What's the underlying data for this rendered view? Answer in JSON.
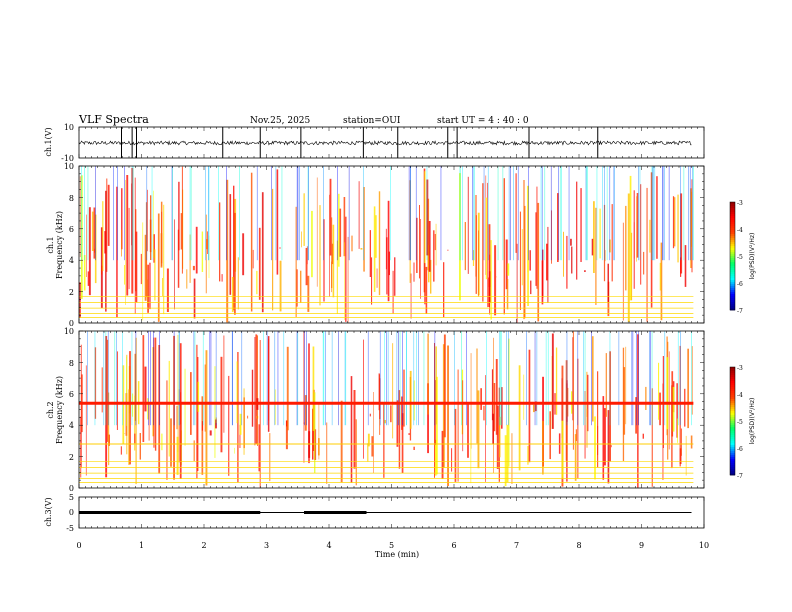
{
  "header": {
    "title": "VLF Spectra",
    "date": "Nov.25, 2025",
    "station": "station=OUI",
    "start_ut": "start  UT =  4 : 40 : 0"
  },
  "chart_data": [
    {
      "type": "line",
      "panel": "ch1-waveform",
      "ylabel": "ch.1(V)",
      "ylim": [
        -10,
        10
      ],
      "yticks": [
        "10",
        "-10"
      ],
      "xlim": [
        0,
        10
      ],
      "baseline": -0.3,
      "spikes": [
        0.68,
        0.85,
        0.92,
        2.3,
        2.9,
        3.55,
        4.55,
        5.1,
        5.9,
        6.05,
        7.2,
        8.3
      ]
    },
    {
      "type": "heatmap",
      "panel": "ch1-spectrogram",
      "ylabel": "ch.1\nFrequency (kHz)",
      "ylim": [
        0,
        10
      ],
      "yticks": [
        "0",
        "2",
        "4",
        "6",
        "8",
        "10"
      ],
      "xlim": [
        0,
        9.83
      ],
      "colorbar": {
        "range": [
          -7,
          -3
        ],
        "ticks": [
          "-3",
          "-4",
          "-5",
          "-6",
          "-7"
        ],
        "label": "log(PSD)(V²/Hz)"
      },
      "bands_khz": [
        {
          "f0": 0.0,
          "f1": 0.4,
          "level": -6.8
        },
        {
          "f0": 0.4,
          "f1": 2.0,
          "level": -6.4
        },
        {
          "f0": 2.0,
          "f1": 2.6,
          "level": -5.7
        },
        {
          "f0": 2.6,
          "f1": 3.3,
          "level": -5.2
        },
        {
          "f0": 3.3,
          "f1": 4.5,
          "level": -6.3
        },
        {
          "f0": 4.5,
          "f1": 5.0,
          "level": -5.6
        },
        {
          "f0": 5.0,
          "f1": 10.0,
          "level": -4.7
        }
      ]
    },
    {
      "type": "heatmap",
      "panel": "ch2-spectrogram",
      "ylabel": "ch.2\nFrequency (kHz)",
      "ylim": [
        0,
        10
      ],
      "yticks": [
        "0",
        "2",
        "4",
        "6",
        "8",
        "10"
      ],
      "xlim": [
        0,
        9.83
      ],
      "colorbar": {
        "range": [
          -7,
          -3
        ],
        "ticks": [
          "-3",
          "-4",
          "-5",
          "-6",
          "-7"
        ],
        "label": "log(PSD)(V²/Hz)"
      },
      "bands_khz": [
        {
          "f0": 0.0,
          "f1": 0.4,
          "level": -6.7
        },
        {
          "f0": 0.4,
          "f1": 2.0,
          "level": -6.3
        },
        {
          "f0": 2.0,
          "f1": 2.6,
          "level": -5.6
        },
        {
          "f0": 2.6,
          "f1": 3.0,
          "level": -4.7
        },
        {
          "f0": 3.0,
          "f1": 4.5,
          "level": -5.7
        },
        {
          "f0": 4.5,
          "f1": 5.1,
          "level": -5.0
        },
        {
          "f0": 5.1,
          "f1": 5.6,
          "level": -3.6
        },
        {
          "f0": 5.6,
          "f1": 10.0,
          "level": -4.4
        }
      ]
    },
    {
      "type": "line",
      "panel": "ch3-trigger",
      "ylabel": "ch.3(V)",
      "ylim": [
        -5,
        5
      ],
      "yticks": [
        "5",
        "0",
        "-5"
      ],
      "xlim": [
        0,
        10
      ],
      "level": 0,
      "thick_segments": [
        [
          0,
          2.9
        ],
        [
          3.6,
          4.6
        ]
      ],
      "xlabel": "Time (min)",
      "xticks": [
        "0",
        "1",
        "2",
        "3",
        "4",
        "5",
        "6",
        "7",
        "8",
        "9",
        "10"
      ]
    }
  ],
  "colors": {
    "colormap": [
      "#000080",
      "#0000ff",
      "#00ffff",
      "#00ff66",
      "#ffff00",
      "#ff4000",
      "#ff0000",
      "#8b0000"
    ]
  }
}
